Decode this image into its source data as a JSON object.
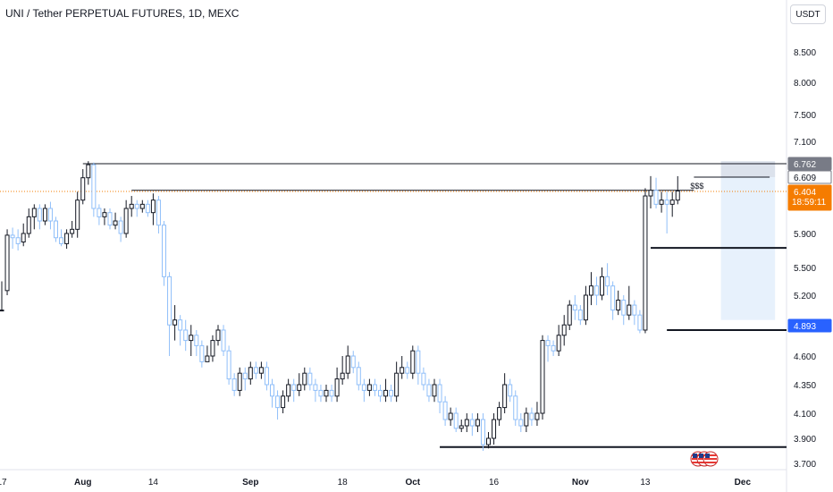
{
  "header": {
    "title": "UNI / Tether PERPETUAL FUTURES, 1D, MEXC",
    "currency": "USDT"
  },
  "chart_data": {
    "type": "candlestick",
    "ylim": [
      3.62,
      8.95
    ],
    "y_ticks": [
      "3.700",
      "3.900",
      "4.100",
      "4.350",
      "4.600",
      "4.893",
      "5.200",
      "5.500",
      "5.900",
      "6.404",
      "6.609",
      "6.762",
      "7.100",
      "7.500",
      "8.000",
      "8.500"
    ],
    "x_ticks": [
      {
        "label": "17",
        "index": 0
      },
      {
        "label": "Aug",
        "index": 15
      },
      {
        "label": "14",
        "index": 28
      },
      {
        "label": "Sep",
        "index": 46
      },
      {
        "label": "18",
        "index": 63
      },
      {
        "label": "Oct",
        "index": 76
      },
      {
        "label": "16",
        "index": 91
      },
      {
        "label": "Nov",
        "index": 107
      },
      {
        "label": "13",
        "index": 119
      },
      {
        "label": "Dec",
        "index": 137
      }
    ],
    "price_tags": [
      {
        "label": "6.762",
        "value": 6.762,
        "bg": "#787b86"
      },
      {
        "label": "6.609",
        "value": 6.609,
        "bg": "#ffffff",
        "border": "#787b86"
      },
      {
        "label": "6.404",
        "value": 6.404,
        "bg": "#f57c00"
      },
      {
        "label": "4.893",
        "value": 4.893,
        "bg": "#2962ff"
      }
    ],
    "countdown": "18:59:11",
    "last_price": 6.404,
    "horizontal_levels": [
      {
        "value": 6.762,
        "from": 15,
        "to": 150,
        "width": 1
      },
      {
        "value": 6.42,
        "from": 24,
        "to": 128,
        "width": 1
      },
      {
        "value": 6.609,
        "from": 128,
        "to": 142,
        "width": 1
      },
      {
        "value": 5.73,
        "from": 120,
        "to": 150,
        "width": 2
      },
      {
        "value": 4.85,
        "from": 123,
        "to": 150,
        "width": 2
      },
      {
        "value": 3.83,
        "from": 81,
        "to": 150,
        "width": 2
      }
    ],
    "annotation": {
      "text": "$$$",
      "index": 128,
      "value": 6.44
    },
    "position_box": {
      "from": 133,
      "to": 143,
      "top": 6.8,
      "bottom": 4.95
    },
    "colors": {
      "up": "#131722",
      "down": "#90bff9",
      "level": "#131722",
      "last": "#f57c00"
    },
    "candles": [
      [
        5.05,
        5.05,
        5.35,
        5.05
      ],
      [
        5.25,
        5.88,
        5.95,
        5.2
      ],
      [
        5.88,
        5.85,
        5.97,
        5.72
      ],
      [
        5.85,
        5.78,
        5.95,
        5.7
      ],
      [
        5.8,
        5.9,
        6.02,
        5.75
      ],
      [
        5.9,
        6.1,
        6.2,
        5.85
      ],
      [
        6.1,
        6.2,
        6.25,
        5.95
      ],
      [
        6.2,
        6.05,
        6.25,
        5.95
      ],
      [
        6.05,
        6.2,
        6.25,
        6.0
      ],
      [
        6.2,
        6.05,
        6.28,
        5.95
      ],
      [
        6.05,
        5.85,
        6.1,
        5.8
      ],
      [
        5.85,
        5.78,
        5.95,
        5.75
      ],
      [
        5.78,
        5.9,
        5.95,
        5.72
      ],
      [
        5.9,
        5.95,
        6.05,
        5.85
      ],
      [
        5.95,
        6.3,
        6.4,
        5.85
      ],
      [
        6.3,
        6.6,
        6.7,
        6.25
      ],
      [
        6.6,
        6.75,
        6.8,
        6.5
      ],
      [
        6.75,
        6.2,
        6.78,
        6.1
      ],
      [
        6.2,
        6.1,
        6.25,
        6.0
      ],
      [
        6.1,
        6.15,
        6.2,
        6.0
      ],
      [
        6.15,
        6.0,
        6.2,
        5.95
      ],
      [
        6.0,
        6.05,
        6.15,
        5.95
      ],
      [
        6.05,
        5.9,
        6.1,
        5.8
      ],
      [
        5.9,
        6.2,
        6.3,
        5.85
      ],
      [
        6.2,
        6.25,
        6.35,
        6.1
      ],
      [
        6.25,
        6.2,
        6.3,
        6.1
      ],
      [
        6.2,
        6.25,
        6.3,
        6.15
      ],
      [
        6.25,
        6.15,
        6.3,
        6.1
      ],
      [
        6.15,
        6.3,
        6.38,
        6.0
      ],
      [
        6.3,
        6.0,
        6.35,
        5.9
      ],
      [
        6.0,
        5.4,
        6.05,
        5.3
      ],
      [
        5.4,
        4.9,
        5.45,
        4.6
      ],
      [
        4.9,
        4.95,
        5.1,
        4.75
      ],
      [
        4.95,
        4.85,
        5.0,
        4.7
      ],
      [
        4.85,
        4.75,
        4.95,
        4.65
      ],
      [
        4.75,
        4.8,
        4.9,
        4.6
      ],
      [
        4.8,
        4.7,
        4.85,
        4.6
      ],
      [
        4.7,
        4.55,
        4.75,
        4.5
      ],
      [
        4.55,
        4.6,
        4.7,
        4.55
      ],
      [
        4.6,
        4.75,
        4.8,
        4.55
      ],
      [
        4.75,
        4.85,
        4.9,
        4.7
      ],
      [
        4.85,
        4.65,
        4.9,
        4.6
      ],
      [
        4.65,
        4.4,
        4.7,
        4.35
      ],
      [
        4.4,
        4.3,
        4.45,
        4.25
      ],
      [
        4.3,
        4.45,
        4.5,
        4.25
      ],
      [
        4.45,
        4.4,
        4.5,
        4.3
      ],
      [
        4.4,
        4.5,
        4.55,
        4.35
      ],
      [
        4.5,
        4.45,
        4.55,
        4.4
      ],
      [
        4.45,
        4.5,
        4.55,
        4.4
      ],
      [
        4.5,
        4.35,
        4.55,
        4.3
      ],
      [
        4.35,
        4.25,
        4.4,
        4.15
      ],
      [
        4.25,
        4.15,
        4.3,
        4.05
      ],
      [
        4.15,
        4.25,
        4.3,
        4.1
      ],
      [
        4.25,
        4.35,
        4.4,
        4.2
      ],
      [
        4.35,
        4.3,
        4.4,
        4.2
      ],
      [
        4.3,
        4.35,
        4.45,
        4.25
      ],
      [
        4.35,
        4.45,
        4.5,
        4.3
      ],
      [
        4.45,
        4.35,
        4.5,
        4.3
      ],
      [
        4.35,
        4.3,
        4.4,
        4.2
      ],
      [
        4.3,
        4.25,
        4.35,
        4.2
      ],
      [
        4.25,
        4.3,
        4.35,
        4.2
      ],
      [
        4.3,
        4.25,
        4.35,
        4.2
      ],
      [
        4.25,
        4.4,
        4.5,
        4.2
      ],
      [
        4.4,
        4.45,
        4.6,
        4.35
      ],
      [
        4.45,
        4.6,
        4.7,
        4.4
      ],
      [
        4.6,
        4.5,
        4.65,
        4.45
      ],
      [
        4.5,
        4.35,
        4.55,
        4.3
      ],
      [
        4.35,
        4.3,
        4.4,
        4.2
      ],
      [
        4.3,
        4.35,
        4.4,
        4.25
      ],
      [
        4.35,
        4.3,
        4.4,
        4.25
      ],
      [
        4.3,
        4.25,
        4.35,
        4.2
      ],
      [
        4.25,
        4.3,
        4.4,
        4.2
      ],
      [
        4.3,
        4.25,
        4.35,
        4.2
      ],
      [
        4.25,
        4.45,
        4.55,
        4.2
      ],
      [
        4.45,
        4.5,
        4.6,
        4.4
      ],
      [
        4.5,
        4.45,
        4.55,
        4.4
      ],
      [
        4.45,
        4.65,
        4.7,
        4.4
      ],
      [
        4.65,
        4.45,
        4.7,
        4.35
      ],
      [
        4.45,
        4.35,
        4.5,
        4.3
      ],
      [
        4.35,
        4.25,
        4.4,
        4.2
      ],
      [
        4.25,
        4.35,
        4.4,
        4.2
      ],
      [
        4.35,
        4.2,
        4.4,
        4.1
      ],
      [
        4.2,
        4.05,
        4.25,
        4.0
      ],
      [
        4.05,
        4.1,
        4.15,
        4.0
      ],
      [
        4.1,
        3.98,
        4.15,
        3.95
      ],
      [
        3.98,
        4.0,
        4.05,
        3.95
      ],
      [
        4.0,
        4.05,
        4.1,
        3.95
      ],
      [
        4.05,
        4.0,
        4.1,
        3.92
      ],
      [
        4.0,
        4.05,
        4.1,
        3.95
      ],
      [
        4.05,
        3.85,
        4.1,
        3.8
      ],
      [
        3.85,
        3.9,
        3.95,
        3.82
      ],
      [
        3.9,
        4.05,
        4.1,
        3.85
      ],
      [
        4.05,
        4.15,
        4.2,
        4.0
      ],
      [
        4.15,
        4.35,
        4.45,
        4.1
      ],
      [
        4.35,
        4.25,
        4.4,
        4.2
      ],
      [
        4.25,
        4.05,
        4.3,
        4.0
      ],
      [
        4.05,
        4.0,
        4.1,
        3.95
      ],
      [
        4.0,
        4.1,
        4.15,
        3.95
      ],
      [
        4.1,
        4.05,
        4.15,
        4.0
      ],
      [
        4.05,
        4.1,
        4.2,
        4.0
      ],
      [
        4.1,
        4.75,
        4.8,
        4.05
      ],
      [
        4.75,
        4.7,
        4.8,
        4.55
      ],
      [
        4.7,
        4.65,
        4.75,
        4.6
      ],
      [
        4.65,
        4.8,
        4.9,
        4.6
      ],
      [
        4.8,
        4.9,
        5.0,
        4.7
      ],
      [
        4.9,
        5.1,
        5.15,
        4.85
      ],
      [
        5.1,
        5.05,
        5.2,
        4.95
      ],
      [
        5.05,
        4.95,
        5.1,
        4.9
      ],
      [
        4.95,
        5.2,
        5.3,
        4.9
      ],
      [
        5.2,
        5.3,
        5.45,
        5.1
      ],
      [
        5.3,
        5.2,
        5.4,
        5.1
      ],
      [
        5.2,
        5.4,
        5.5,
        5.15
      ],
      [
        5.4,
        5.3,
        5.55,
        5.2
      ],
      [
        5.3,
        5.05,
        5.35,
        4.95
      ],
      [
        5.05,
        5.15,
        5.25,
        5.0
      ],
      [
        5.15,
        5.0,
        5.2,
        4.9
      ],
      [
        5.0,
        5.1,
        5.3,
        4.95
      ],
      [
        5.1,
        5.0,
        5.15,
        4.9
      ],
      [
        5.0,
        4.85,
        5.05,
        4.82
      ],
      [
        4.85,
        6.35,
        6.45,
        4.82
      ],
      [
        6.35,
        6.42,
        6.62,
        6.2
      ],
      [
        6.42,
        6.25,
        6.6,
        6.2
      ],
      [
        6.25,
        6.3,
        6.4,
        6.15
      ],
      [
        6.3,
        6.25,
        6.4,
        5.9
      ],
      [
        6.25,
        6.3,
        6.4,
        6.1
      ],
      [
        6.3,
        6.41,
        6.62,
        6.25
      ]
    ]
  }
}
